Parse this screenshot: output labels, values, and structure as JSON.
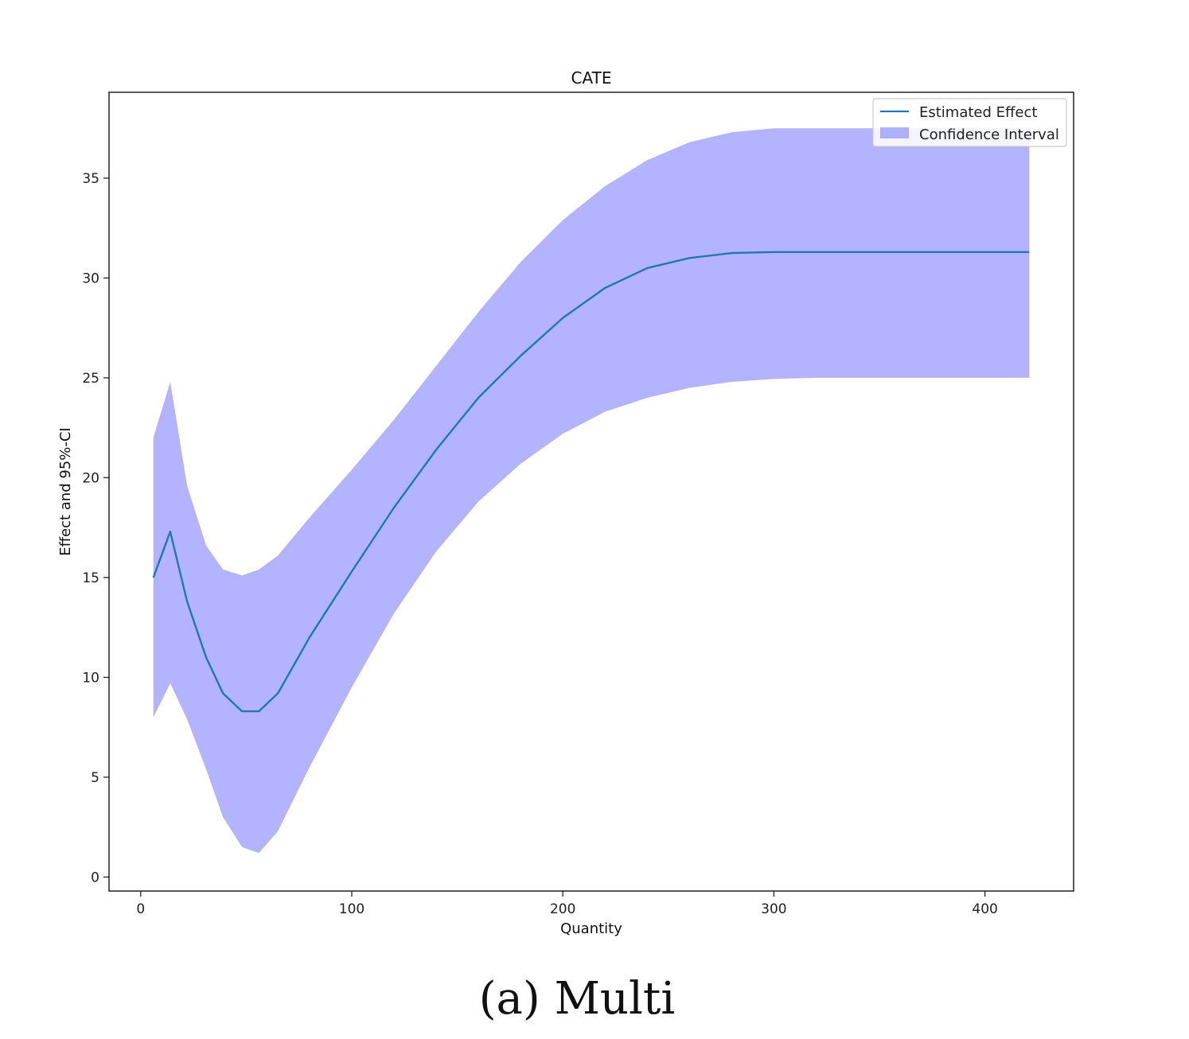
{
  "caption": "(a) Multi",
  "chart_data": {
    "type": "line",
    "title": "CATE",
    "xlabel": "Quantity",
    "ylabel": "Effect and 95%-CI",
    "xlim": [
      -15,
      442
    ],
    "ylim": [
      -0.7,
      39.3
    ],
    "xticks": [
      0,
      100,
      200,
      300,
      400
    ],
    "yticks": [
      0,
      5,
      10,
      15,
      20,
      25,
      30,
      35
    ],
    "grid": false,
    "legend_position": "top-right",
    "colors": {
      "line": "#1f77b4",
      "band": "#8080ff",
      "band_opacity": 0.6
    },
    "x": [
      6,
      14,
      22,
      31,
      39,
      48,
      56,
      65,
      80,
      100,
      120,
      140,
      160,
      180,
      200,
      220,
      240,
      260,
      280,
      300,
      320,
      350,
      380,
      421
    ],
    "series": [
      {
        "name": "Estimated Effect",
        "type": "line",
        "values": [
          15.0,
          17.3,
          13.8,
          11.0,
          9.2,
          8.3,
          8.3,
          9.2,
          12.0,
          15.3,
          18.5,
          21.4,
          24.0,
          26.1,
          28.0,
          29.5,
          30.5,
          31.0,
          31.25,
          31.3,
          31.3,
          31.3,
          31.3,
          31.3
        ]
      },
      {
        "name": "Confidence Interval",
        "type": "band",
        "upper": [
          22.0,
          24.8,
          19.6,
          16.6,
          15.4,
          15.1,
          15.4,
          16.1,
          18.0,
          20.4,
          22.9,
          25.6,
          28.3,
          30.8,
          32.9,
          34.6,
          35.9,
          36.8,
          37.3,
          37.5,
          37.5,
          37.5,
          37.5,
          37.5
        ],
        "lower": [
          8.0,
          9.7,
          7.9,
          5.4,
          3.0,
          1.5,
          1.2,
          2.3,
          5.5,
          9.5,
          13.2,
          16.3,
          18.8,
          20.7,
          22.2,
          23.3,
          24.0,
          24.5,
          24.8,
          24.95,
          25.0,
          25.0,
          25.0,
          25.0
        ]
      }
    ]
  }
}
